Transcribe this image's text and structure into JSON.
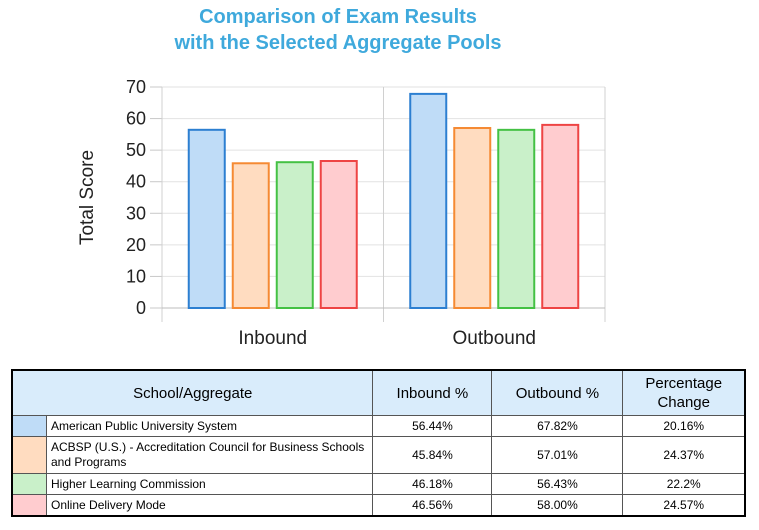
{
  "chart_data": {
    "type": "bar",
    "title": [
      "Comparison of Exam Results",
      "with the Selected Aggregate Pools"
    ],
    "ylabel": "Total Score",
    "xlabel": "",
    "ylim": [
      0,
      70
    ],
    "yticks": [
      0,
      10,
      20,
      30,
      40,
      50,
      60,
      70
    ],
    "grid": true,
    "categories": [
      "Inbound",
      "Outbound"
    ],
    "series": [
      {
        "name": "American Public University System",
        "values": [
          56.44,
          67.82
        ],
        "fill": "#bfdcf7",
        "stroke": "#2c7fd1"
      },
      {
        "name": "ACBSP (U.S.) - Accreditation Council for Business Schools and Programs",
        "values": [
          45.84,
          57.01
        ],
        "fill": "#ffdcc0",
        "stroke": "#f58a33"
      },
      {
        "name": "Higher Learning Commission",
        "values": [
          46.18,
          56.43
        ],
        "fill": "#c9f0c9",
        "stroke": "#44c144"
      },
      {
        "name": "Online Delivery Mode",
        "values": [
          46.56,
          58.0
        ],
        "fill": "#ffcccf",
        "stroke": "#ee4444"
      }
    ]
  },
  "table": {
    "headers": [
      "School/Aggregate",
      "Inbound %",
      "Outbound %",
      "Percentage Change"
    ],
    "rows": [
      {
        "name": "American Public University System",
        "inbound": "56.44%",
        "outbound": "67.82%",
        "change": "20.16%",
        "color": "#bfdcf7"
      },
      {
        "name": "ACBSP (U.S.) - Accreditation Council for Business Schools and Programs",
        "inbound": "45.84%",
        "outbound": "57.01%",
        "change": "24.37%",
        "color": "#ffdcc0"
      },
      {
        "name": "Higher Learning Commission",
        "inbound": "46.18%",
        "outbound": "56.43%",
        "change": "22.2%",
        "color": "#c9f0c9"
      },
      {
        "name": "Online Delivery Mode",
        "inbound": "46.56%",
        "outbound": "58.00%",
        "change": "24.57%",
        "color": "#ffcccf"
      }
    ]
  }
}
